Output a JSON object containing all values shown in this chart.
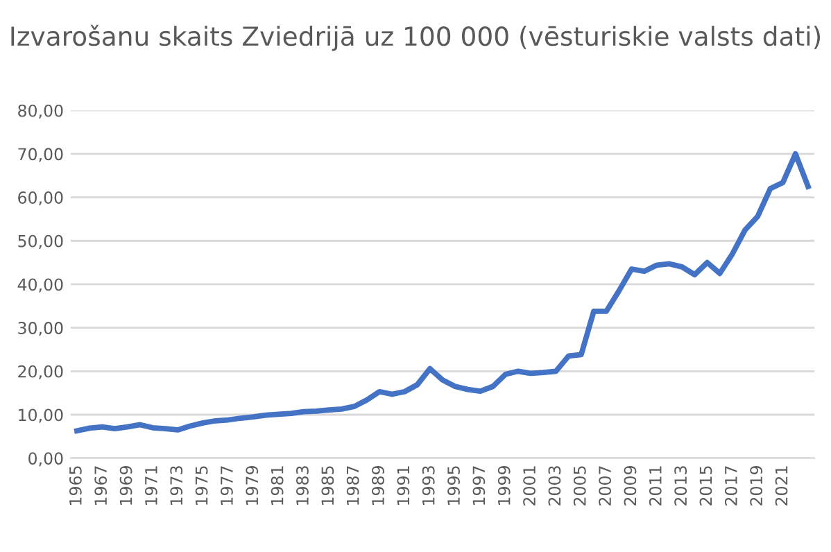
{
  "chart_data": {
    "type": "line",
    "title": "Izvarošanu skaits Zviedrijā uz 100 000 (vēsturiskie valsts dati)",
    "categories": [
      "1965",
      null,
      "1967",
      null,
      "1969",
      null,
      "1971",
      null,
      "1973",
      null,
      "1975",
      null,
      "1977",
      null,
      "1979",
      null,
      "1981",
      null,
      "1983",
      null,
      "1985",
      null,
      "1987",
      null,
      "1989",
      null,
      "1991",
      null,
      "1993",
      null,
      "1995",
      null,
      "1997",
      null,
      "1999",
      null,
      "2001",
      null,
      "2003",
      null,
      "2005",
      null,
      "2007",
      null,
      "2009",
      null,
      "2011",
      null,
      "2013",
      null,
      "2015",
      null,
      "2017",
      null,
      "2019",
      null,
      "2021",
      null,
      null
    ],
    "series": [
      {
        "color": "#4472c4",
        "values": [
          6.3,
          6.9,
          7.2,
          6.8,
          7.2,
          7.7,
          7.0,
          6.8,
          6.5,
          7.4,
          8.1,
          8.6,
          8.8,
          9.2,
          9.5,
          9.9,
          10.1,
          10.3,
          10.7,
          10.8,
          11.1,
          11.3,
          11.9,
          13.4,
          15.3,
          14.7,
          15.3,
          16.9,
          20.6,
          18.0,
          16.5,
          15.8,
          15.4,
          16.5,
          19.3,
          20.0,
          19.5,
          19.7,
          20.0,
          23.5,
          23.8,
          33.8,
          33.8,
          38.5,
          43.5,
          43.0,
          44.4,
          44.7,
          44.0,
          42.2,
          45.0,
          42.5,
          47.0,
          52.5,
          55.6,
          62.0,
          63.4,
          70.0,
          62.5
        ]
      }
    ],
    "ylim": [
      0,
      80
    ],
    "yticks": [
      {
        "value": 0,
        "label": "0,00"
      },
      {
        "value": 10,
        "label": "10,00"
      },
      {
        "value": 20,
        "label": "20,00"
      },
      {
        "value": 30,
        "label": "30,00"
      },
      {
        "value": 40,
        "label": "40,00"
      },
      {
        "value": 50,
        "label": "50,00"
      },
      {
        "value": 60,
        "label": "60,00"
      },
      {
        "value": 70,
        "label": "70,00"
      },
      {
        "value": 80,
        "label": "80,00"
      }
    ],
    "grid": "y",
    "legend": false,
    "marker": "none",
    "line_style": "solid"
  }
}
